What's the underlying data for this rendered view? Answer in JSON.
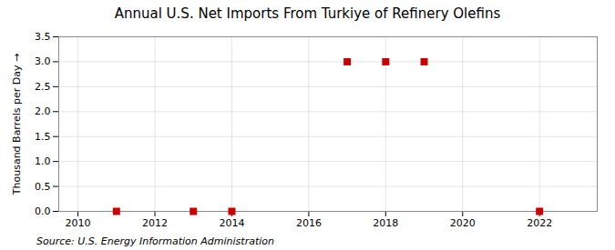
{
  "chart_data": {
    "type": "scatter",
    "title": "Annual U.S. Net Imports From Turkiye of Refinery Olefins",
    "ylabel": "Thousand Barrels per Day",
    "source": "Source: U.S. Energy Information Administration",
    "x": [
      2011,
      2013,
      2014,
      2017,
      2018,
      2019,
      2022
    ],
    "values": [
      0.0,
      0.0,
      0.0,
      3.0,
      3.0,
      3.0,
      0.0
    ],
    "color": "#cc0000",
    "marker": "square",
    "xlim": [
      2009.5,
      2023.5
    ],
    "xticks": [
      2010,
      2012,
      2014,
      2016,
      2018,
      2020,
      2022
    ],
    "ylim": [
      0,
      3.5
    ],
    "yticks": [
      {
        "value": 0,
        "label": "0.0"
      },
      0.5,
      {
        "value": 1,
        "label": "1.0"
      },
      1.5,
      {
        "value": 2,
        "label": "2.0"
      },
      2.5,
      {
        "value": 3,
        "label": "3.0"
      },
      3.5
    ],
    "grid": true
  }
}
